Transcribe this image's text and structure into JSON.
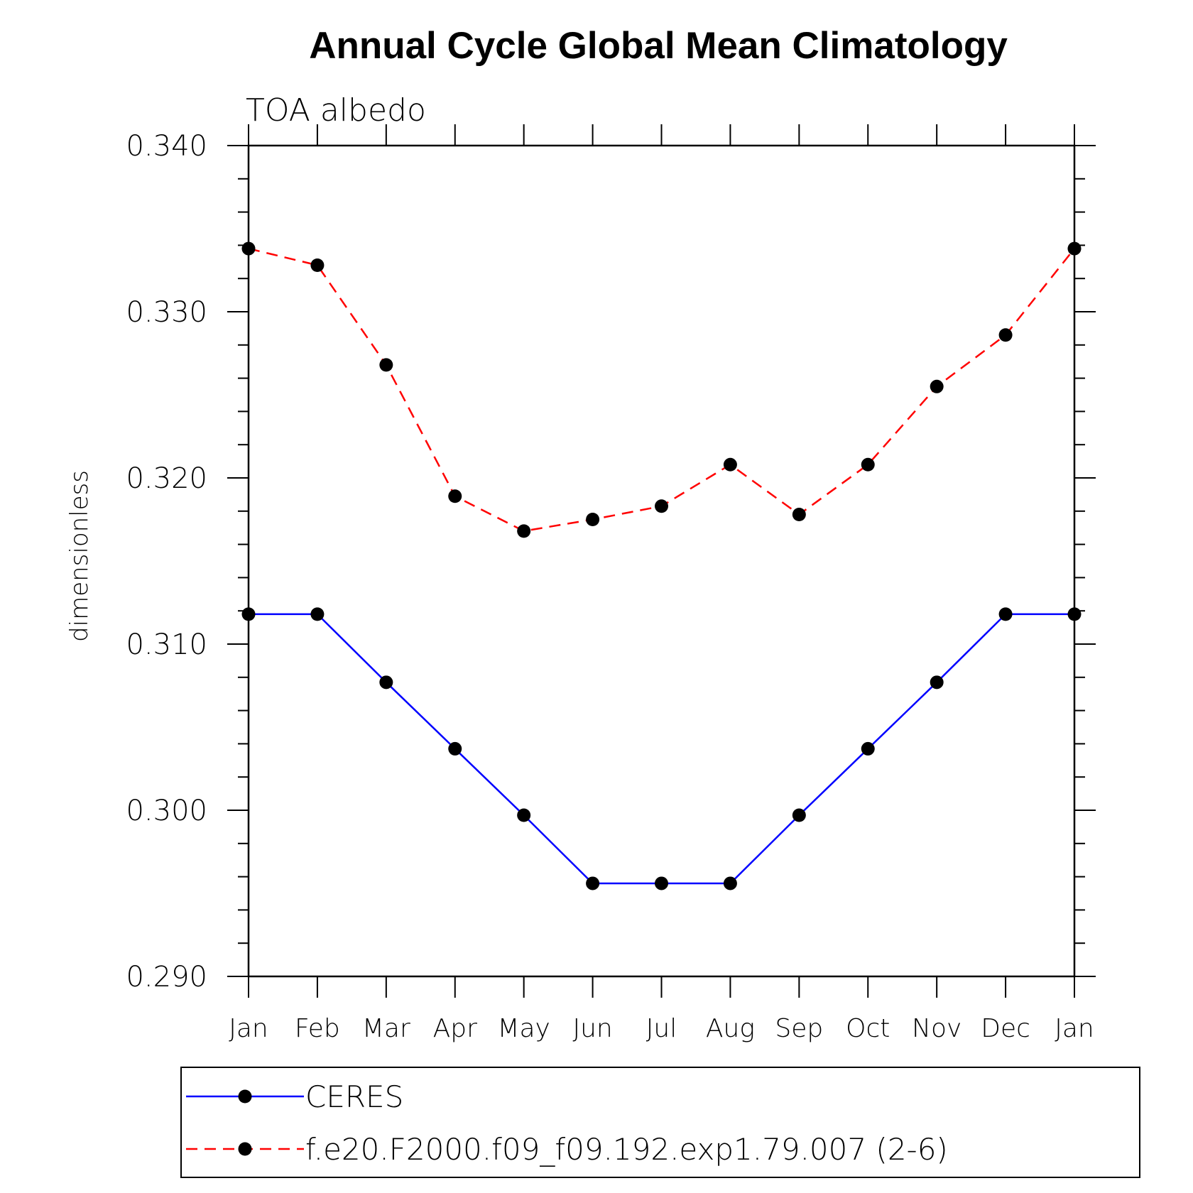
{
  "chart_data": {
    "type": "line",
    "title": "Annual Cycle Global Mean Climatology",
    "subtitle": "TOA albedo",
    "xlabel": "",
    "ylabel": "dimensionless",
    "categories": [
      "Jan",
      "Feb",
      "Mar",
      "Apr",
      "May",
      "Jun",
      "Jul",
      "Aug",
      "Sep",
      "Oct",
      "Nov",
      "Dec",
      "Jan"
    ],
    "ylim": [
      0.29,
      0.34
    ],
    "yticks": [
      "0.290",
      "0.300",
      "0.310",
      "0.320",
      "0.330",
      "0.340"
    ],
    "grid": false,
    "legend_position": "bottom",
    "series": [
      {
        "name": "CERES",
        "color": "#0000ff",
        "line_style": "solid",
        "marker": "filled-circle",
        "values": [
          0.3118,
          0.3118,
          0.3077,
          0.3037,
          0.2997,
          0.2956,
          0.2956,
          0.2956,
          0.2997,
          0.3037,
          0.3077,
          0.3118,
          0.3118
        ]
      },
      {
        "name": "f.e20.F2000.f09_f09.192.exp1.79.007 (2-6)",
        "color": "#ff0000",
        "line_style": "dashed",
        "marker": "filled-circle",
        "values": [
          0.3338,
          0.3328,
          0.3268,
          0.3189,
          0.3168,
          0.3175,
          0.3183,
          0.3208,
          0.3178,
          0.3208,
          0.3255,
          0.3286,
          0.3338
        ]
      }
    ]
  }
}
